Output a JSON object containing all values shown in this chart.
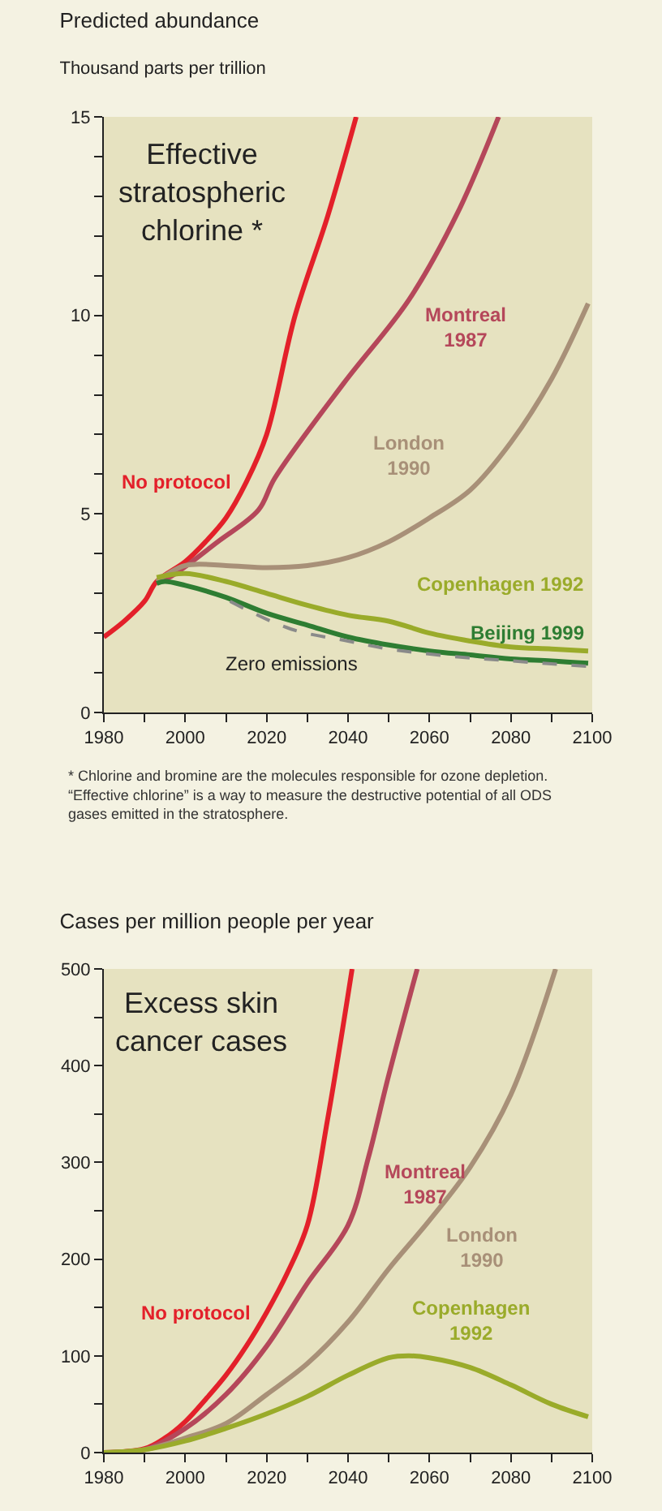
{
  "chart_data": [
    {
      "type": "line",
      "title": "Predicted abundance",
      "subtitle": "Thousand parts per trillion",
      "annotations": [
        "Effective stratospheric chlorine *",
        "* Chlorine and bromine are the molecules responsible for ozone depletion.",
        "“Effective chlorine” is a way to measure the destructive potential of all ODS gases emitted in the stratosphere."
      ],
      "series": [
        {
          "name": "No protocol",
          "color": "#e3202a",
          "x": [
            1980,
            1985,
            1990,
            1993,
            2000,
            2005,
            2010,
            2015,
            2020,
            2027,
            2035,
            2042
          ],
          "values": [
            1.9,
            2.3,
            2.8,
            3.3,
            3.8,
            4.3,
            4.9,
            5.8,
            7.0,
            10.0,
            12.5,
            15.0
          ]
        },
        {
          "name": "Montreal 1987",
          "color": "#b5475a",
          "x": [
            1993,
            1996,
            2008,
            2018,
            2022,
            2039,
            2055,
            2067,
            2077
          ],
          "values": [
            3.3,
            3.4,
            4.3,
            5.1,
            5.9,
            8.3,
            10.4,
            12.6,
            15.0
          ]
        },
        {
          "name": "London 1990",
          "color": "#a89078",
          "x": [
            1993,
            2000,
            2010,
            2020,
            2030,
            2040,
            2050,
            2060,
            2070,
            2080,
            2090,
            2099
          ],
          "values": [
            3.3,
            3.7,
            3.7,
            3.65,
            3.7,
            3.9,
            4.3,
            4.9,
            5.6,
            6.8,
            8.4,
            10.3
          ]
        },
        {
          "name": "Copenhagen 1992",
          "color": "#9aab2a",
          "x": [
            1993,
            2000,
            2010,
            2020,
            2030,
            2040,
            2050,
            2060,
            2070,
            2080,
            2090,
            2099
          ],
          "values": [
            3.4,
            3.5,
            3.3,
            3.0,
            2.7,
            2.45,
            2.3,
            2.0,
            1.8,
            1.65,
            1.6,
            1.55
          ]
        },
        {
          "name": "Beijing 1999",
          "color": "#2e7d32",
          "x": [
            1993,
            1995,
            2000,
            2010,
            2020,
            2030,
            2040,
            2050,
            2060,
            2070,
            2080,
            2090,
            2099
          ],
          "values": [
            3.25,
            3.3,
            3.2,
            2.9,
            2.5,
            2.2,
            1.9,
            1.7,
            1.55,
            1.45,
            1.35,
            1.3,
            1.24
          ]
        },
        {
          "name": "Zero emissions",
          "color": "#8a8a8a",
          "line_style": "dashed",
          "x": [
            2011,
            2026,
            2040,
            2050,
            2067,
            2080,
            2099
          ],
          "values": [
            2.8,
            2.1,
            1.8,
            1.6,
            1.4,
            1.3,
            1.16
          ]
        }
      ],
      "xlim": [
        1980,
        2100
      ],
      "xticks": [
        1980,
        {
          "value": 1990,
          "label": null
        },
        2000,
        {
          "value": 2010,
          "label": null
        },
        2020,
        {
          "value": 2030,
          "label": null
        },
        2040,
        {
          "value": 2050,
          "label": null
        },
        2060,
        {
          "value": 2070,
          "label": null
        },
        2080,
        {
          "value": 2090,
          "label": null
        },
        2100
      ],
      "ylim": [
        0,
        15
      ],
      "yticks": [
        0,
        {
          "value": 1,
          "label": null
        },
        {
          "value": 2,
          "label": null
        },
        {
          "value": 3,
          "label": null
        },
        {
          "value": 4,
          "label": null
        },
        5,
        {
          "value": 6,
          "label": null
        },
        {
          "value": 7,
          "label": null
        },
        {
          "value": 8,
          "label": null
        },
        {
          "value": 9,
          "label": null
        },
        10,
        {
          "value": 11,
          "label": null
        },
        {
          "value": 12,
          "label": null
        },
        {
          "value": 13,
          "label": null
        },
        {
          "value": 14,
          "label": null
        },
        15
      ],
      "grid": false,
      "legend": false,
      "marker": "none",
      "line_style": "solid"
    },
    {
      "type": "line",
      "title": "Cases per million people per year",
      "annotations": [
        "Excess skin cancer cases"
      ],
      "series": [
        {
          "name": "No protocol",
          "color": "#e3202a",
          "x": [
            1980,
            1990,
            1995,
            2000,
            2005,
            2010,
            2015,
            2020,
            2025,
            2030,
            2035,
            2041
          ],
          "values": [
            0,
            4,
            15,
            32,
            55,
            80,
            110,
            145,
            185,
            235,
            345,
            500
          ]
        },
        {
          "name": "Montreal 1987",
          "color": "#b5475a",
          "x": [
            1980,
            1990,
            2000,
            2010,
            2020,
            2030,
            2040,
            2045,
            2050,
            2057
          ],
          "values": [
            0,
            3,
            25,
            60,
            110,
            175,
            235,
            305,
            390,
            500
          ]
        },
        {
          "name": "London 1990",
          "color": "#a89078",
          "x": [
            1980,
            1990,
            2000,
            2010,
            2020,
            2030,
            2040,
            2050,
            2060,
            2070,
            2080,
            2091
          ],
          "values": [
            0,
            3,
            15,
            30,
            60,
            92,
            135,
            190,
            240,
            295,
            370,
            500
          ]
        },
        {
          "name": "Copenhagen 1992",
          "color": "#9aab2a",
          "x": [
            1980,
            1990,
            2000,
            2010,
            2020,
            2030,
            2040,
            2050,
            2055,
            2060,
            2070,
            2080,
            2090,
            2099
          ],
          "values": [
            0,
            3,
            12,
            25,
            40,
            58,
            80,
            98,
            100,
            98,
            88,
            70,
            50,
            37
          ]
        }
      ],
      "xlim": [
        1980,
        2100
      ],
      "xticks": [
        1980,
        {
          "value": 1990,
          "label": null
        },
        2000,
        {
          "value": 2010,
          "label": null
        },
        2020,
        {
          "value": 2030,
          "label": null
        },
        2040,
        {
          "value": 2050,
          "label": null
        },
        2060,
        {
          "value": 2070,
          "label": null
        },
        2080,
        {
          "value": 2090,
          "label": null
        },
        2100
      ],
      "ylim": [
        0,
        500
      ],
      "yticks": [
        0,
        {
          "value": 50,
          "label": null
        },
        100,
        {
          "value": 150,
          "label": null
        },
        200,
        {
          "value": 250,
          "label": null
        },
        300,
        {
          "value": 350,
          "label": null
        },
        400,
        {
          "value": 450,
          "label": null
        },
        500
      ],
      "grid": false,
      "legend": false,
      "marker": "none",
      "line_style": "solid"
    }
  ]
}
